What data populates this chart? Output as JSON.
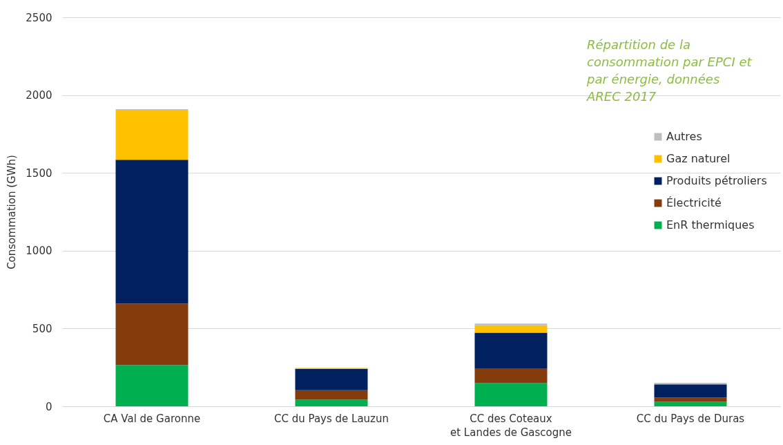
{
  "chart_data": {
    "type": "bar",
    "stacked": true,
    "ylabel": "Consommation (GWh)",
    "categories": [
      "CA Val de Garonne",
      "CC du Pays de Lauzun",
      "CC des Coteaux\net Landes de Gascogne",
      "CC du Pays de Duras"
    ],
    "series": [
      {
        "name": "EnR thermiques",
        "color": "#00b050",
        "values": [
          265,
          43,
          150,
          30
        ]
      },
      {
        "name": "Électricité",
        "color": "#843c0c",
        "values": [
          396,
          60,
          91,
          25
        ]
      },
      {
        "name": "Produits pétroliers",
        "color": "#002060",
        "values": [
          923,
          137,
          232,
          86
        ]
      },
      {
        "name": "Gaz naturel",
        "color": "#ffc000",
        "values": [
          317,
          7,
          48,
          null
        ]
      },
      {
        "name": "Autres",
        "color": "#bfbfbf",
        "values": [
          8,
          null,
          11,
          10
        ]
      }
    ],
    "ylim": [
      0,
      2500
    ],
    "yticks": [
      0,
      500,
      1000,
      1500,
      2000,
      2500
    ],
    "grid": "y",
    "legend": "right",
    "annotations": [
      "Répartition de la consommation par EPCI et par énergie, données AREC 2017"
    ]
  }
}
